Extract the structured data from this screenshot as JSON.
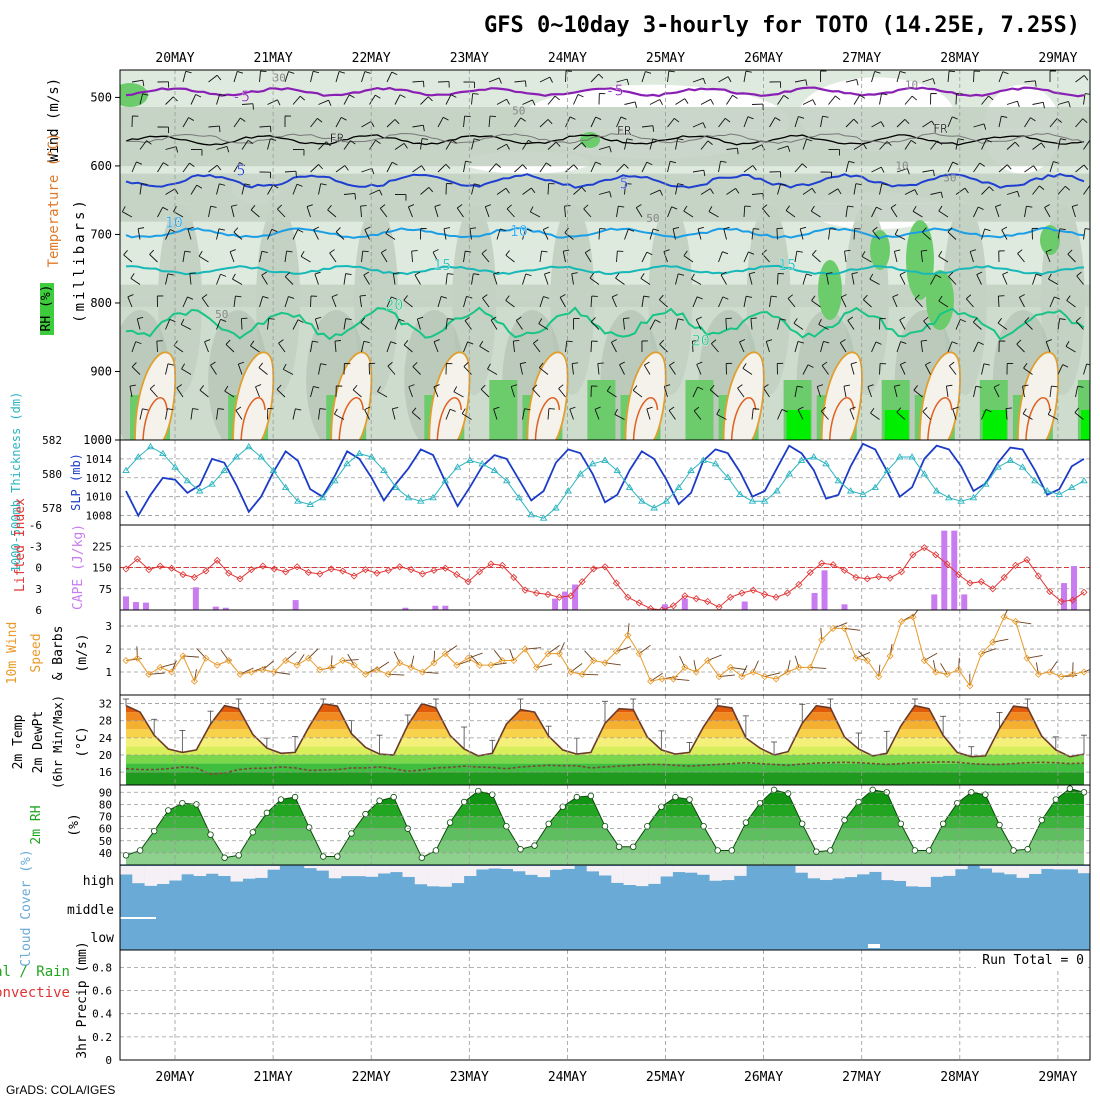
{
  "title": "GFS 0~10day 3-hourly for TOTO (14.25E, 7.25S)",
  "footer": "GrADS: COLA/IGES",
  "dates": [
    "20MAY",
    "21MAY",
    "22MAY",
    "23MAY",
    "24MAY",
    "25MAY",
    "26MAY",
    "27MAY",
    "28MAY",
    "29MAY"
  ],
  "colors": {
    "rh_light": "#dfeadf",
    "rh_mid": "#c3d2c3",
    "rh_dark": "#9aab9a",
    "rh_green": "#6ccc6c",
    "rh_bright": "#00ee00",
    "temp_purple": "#8a1fb4",
    "temp_blue": "#1e3fd0",
    "temp_cyan": "#1a9ee6",
    "temp_teal": "#16b8b8",
    "temp_green": "#18c486",
    "slp": "#1c3cc8",
    "thick": "#2ab4c0",
    "li": "#e03434",
    "cape": "#c87cf0",
    "wind": "#e89a2a",
    "cloud": "#6aaad6",
    "rh2m": "#1fa51f"
  },
  "chart_data": [
    {
      "id": "upper_air",
      "type": "heatmap",
      "ylabel": "Wind (m/s)  Temperature (°C)  RH (%)  (millibars)",
      "legend_rh": "RH (%)",
      "legend_temperature": "Temperature (°C)",
      "legend_wind": "Wind (m/s)",
      "ylabel_units": "(millibars)",
      "pressure_ticks": [
        500,
        600,
        700,
        800,
        900,
        1000
      ],
      "ylim": [
        460,
        1000
      ],
      "isotherm_labels": [
        {
          "text": "-5",
          "t": 0.12,
          "p": 506
        },
        {
          "text": "-5",
          "t": 0.51,
          "p": 497
        },
        {
          "text": "FR",
          "t": 0.22,
          "p": 566
        },
        {
          "text": "FR",
          "t": 0.52,
          "p": 555
        },
        {
          "text": "FR",
          "t": 0.85,
          "p": 552
        },
        {
          "text": "5",
          "t": 0.12,
          "p": 614
        },
        {
          "text": "5",
          "t": 0.52,
          "p": 633
        },
        {
          "text": "10",
          "t": 0.05,
          "p": 690
        },
        {
          "text": "10",
          "t": 0.41,
          "p": 702
        },
        {
          "text": "15",
          "t": 0.33,
          "p": 752
        },
        {
          "text": "15",
          "t": 0.69,
          "p": 752
        },
        {
          "text": "20",
          "t": 0.28,
          "p": 810
        },
        {
          "text": "20",
          "t": 0.6,
          "p": 862
        }
      ],
      "rh_labels": [
        {
          "text": "30",
          "t": 0.16,
          "p": 477
        },
        {
          "text": "50",
          "t": 0.41,
          "p": 525
        },
        {
          "text": "10",
          "t": 0.82,
          "p": 487
        },
        {
          "text": "10",
          "t": 0.81,
          "p": 605
        },
        {
          "text": "30",
          "t": 0.86,
          "p": 623
        },
        {
          "text": "50",
          "t": 0.55,
          "p": 682
        },
        {
          "text": "50",
          "t": 0.1,
          "p": 822
        }
      ]
    },
    {
      "id": "slp_thickness",
      "type": "line",
      "ylabel_left": "1000-500mb Thickness (dm)",
      "ylabel_right": "SLP (mb)",
      "thickness_ticks": [
        578,
        580,
        582
      ],
      "slp_ticks": [
        1008,
        1010,
        1012,
        1014
      ],
      "slp_ylim": [
        1007,
        1016
      ],
      "thick_ylim": [
        577,
        582
      ],
      "series": [
        {
          "name": "SLP (mb)",
          "values": [
            1010.6,
            1008.0,
            1010.2,
            1012.0,
            1011.8,
            1010.4,
            1011.2,
            1014.0,
            1013.6,
            1011.2,
            1008.4,
            1010.0,
            1012.6,
            1014.8,
            1013.8,
            1010.8,
            1010.0,
            1012.2,
            1014.8,
            1014.0,
            1012.0,
            1009.6,
            1011.4,
            1013.0,
            1015.0,
            1014.4,
            1011.6,
            1009.0,
            1011.0,
            1013.2,
            1014.4,
            1014.0,
            1011.8,
            1009.6,
            1010.6,
            1013.6,
            1015.0,
            1014.6,
            1012.4,
            1009.4,
            1010.2,
            1012.8,
            1014.8,
            1014.0,
            1011.8,
            1009.2,
            1010.4,
            1013.8,
            1015.0,
            1014.6,
            1012.6,
            1010.0,
            1010.6,
            1013.0,
            1015.4,
            1014.6,
            1012.8,
            1009.8,
            1010.2,
            1013.2,
            1015.6,
            1015.0,
            1012.6,
            1010.0,
            1011.0,
            1014.0,
            1015.4,
            1015.0,
            1013.2,
            1010.6,
            1011.4,
            1013.6,
            1015.2,
            1015.0,
            1012.8,
            1010.2,
            1010.8,
            1013.2,
            1014.0
          ]
        },
        {
          "name": "1000-500mb Thickness (dm)",
          "values": [
            580.2,
            581.0,
            581.6,
            581.2,
            580.4,
            579.6,
            579.0,
            579.4,
            580.2,
            581.0,
            581.6,
            581.0,
            580.2,
            579.2,
            578.4,
            578.2,
            578.6,
            579.6,
            580.6,
            581.2,
            581.0,
            580.2,
            579.2,
            578.6,
            578.4,
            578.6,
            579.6,
            580.4,
            580.8,
            580.6,
            580.2,
            579.6,
            578.6,
            577.6,
            577.4,
            578.0,
            579.0,
            580.0,
            580.6,
            580.8,
            580.2,
            579.2,
            578.4,
            578.0,
            578.4,
            579.2,
            580.2,
            580.8,
            580.6,
            579.8,
            578.8,
            578.4,
            578.4,
            579.0,
            580.0,
            580.8,
            581.0,
            580.6,
            579.6,
            579.0,
            578.8,
            579.2,
            580.2,
            581.0,
            581.0,
            580.0,
            579.0,
            578.6,
            578.4,
            578.6,
            579.4,
            580.4,
            580.8,
            580.4,
            579.6,
            579.0,
            578.8,
            579.2,
            579.6
          ]
        }
      ]
    },
    {
      "id": "li_cape",
      "type": "bar",
      "ylabel_left": "Lifted Index",
      "ylabel_right": "CAPE (J/kg)",
      "li_ticks": [
        "-6",
        "-3",
        "0",
        "3",
        "6"
      ],
      "cape_ticks": [
        75,
        150,
        225
      ],
      "li_ylim": [
        -6,
        6
      ],
      "cape_ylim": [
        0,
        300
      ],
      "series": [
        {
          "name": "Lifted Index",
          "values": [
            0.2,
            -1.2,
            0.3,
            -0.2,
            0.1,
            1.0,
            1.4,
            0.5,
            -1.0,
            0.8,
            1.6,
            0.3,
            -0.2,
            0.2,
            0.6,
            -0.1,
            0.7,
            0.9,
            0.2,
            0.5,
            1.2,
            0.3,
            0.8,
            0.4,
            -0.1,
            0.3,
            0.9,
            0.4,
            0.1,
            1.0,
            2.0,
            0.6,
            -0.5,
            -0.3,
            1.4,
            3.2,
            3.6,
            3.8,
            4.2,
            4.0,
            2.0,
            0.2,
            -0.1,
            2.2,
            4.2,
            5.0,
            5.8,
            6.0,
            5.4,
            4.0,
            4.4,
            4.8,
            5.6,
            4.2,
            3.6,
            3.2,
            3.8,
            4.2,
            3.6,
            2.4,
            0.7,
            -0.6,
            -0.4,
            0.4,
            1.4,
            1.6,
            1.3,
            1.5,
            0.6,
            -1.8,
            -2.8,
            -1.8,
            -0.5,
            1.0,
            2.2,
            2.0,
            3.0,
            1.4,
            -0.3,
            -1.1,
            1.2,
            3.4,
            4.8,
            4.6,
            3.5
          ]
        },
        {
          "name": "CAPE (J/kg)",
          "values": [
            48,
            28,
            26,
            0,
            0,
            0,
            0,
            80,
            0,
            12,
            8,
            0,
            0,
            0,
            0,
            0,
            0,
            35,
            0,
            0,
            0,
            0,
            0,
            0,
            0,
            0,
            0,
            0,
            8,
            0,
            0,
            15,
            15,
            0,
            0,
            0,
            0,
            0,
            0,
            0,
            0,
            0,
            0,
            40,
            65,
            90,
            0,
            0,
            0,
            0,
            0,
            0,
            0,
            0,
            20,
            0,
            40,
            0,
            0,
            0,
            0,
            0,
            30,
            0,
            0,
            0,
            0,
            0,
            0,
            60,
            140,
            0,
            20,
            0,
            0,
            0,
            0,
            0,
            0,
            0,
            0,
            55,
            280,
            280,
            55,
            0,
            0,
            0,
            0,
            0,
            0,
            0,
            0,
            0,
            95,
            155,
            0
          ]
        }
      ]
    },
    {
      "id": "wind10m",
      "type": "line",
      "ylabel": "10m Wind Speed & Barbs (m/s)",
      "ticks": [
        1,
        2,
        3
      ],
      "ylim": [
        0,
        3.7
      ],
      "series": [
        {
          "name": "10m Wind Speed",
          "values": [
            1.5,
            1.6,
            0.9,
            1.2,
            1.0,
            1.7,
            0.6,
            1.6,
            1.3,
            1.5,
            0.9,
            1.0,
            1.1,
            1.0,
            1.5,
            1.3,
            1.6,
            1.1,
            1.2,
            1.5,
            1.3,
            0.9,
            1.1,
            0.9,
            1.4,
            1.2,
            1.0,
            1.4,
            1.8,
            1.3,
            1.6,
            1.3,
            1.3,
            1.5,
            1.5,
            2.0,
            1.2,
            1.8,
            1.8,
            1.0,
            0.9,
            1.5,
            1.4,
            1.9,
            2.6,
            1.8,
            0.6,
            0.7,
            0.7,
            1.2,
            1.0,
            1.5,
            0.8,
            1.2,
            0.8,
            1.0,
            0.8,
            0.7,
            1.0,
            1.2,
            1.2,
            2.4,
            2.9,
            2.9,
            1.6,
            1.5,
            0.8,
            1.7,
            3.2,
            3.4,
            1.5,
            1.0,
            0.9,
            1.1,
            0.4,
            1.8,
            2.3,
            3.4,
            3.2,
            1.6,
            0.9,
            1.0,
            0.8,
            0.9,
            1.0
          ]
        }
      ]
    },
    {
      "id": "temp2m",
      "type": "area",
      "ylabel": "2m Temp  2m DewPt  (6hr Min/Max) (°C)",
      "ticks": [
        16,
        20,
        24,
        28,
        32
      ],
      "ylim": [
        13,
        34
      ],
      "series": [
        {
          "name": "2m Temp",
          "values": [
            31.5,
            30.0,
            24.6,
            21.4,
            20.6,
            21.2,
            27.2,
            31.5,
            30.8,
            24.8,
            21.6,
            20.4,
            20.6,
            26.6,
            32.0,
            31.4,
            25.0,
            21.8,
            20.2,
            20.0,
            27.0,
            32.0,
            31.0,
            24.6,
            21.4,
            19.8,
            20.4,
            27.2,
            30.6,
            30.0,
            24.4,
            21.2,
            20.2,
            20.6,
            27.4,
            30.8,
            30.6,
            24.2,
            21.2,
            20.2,
            20.6,
            26.6,
            31.5,
            31.0,
            24.0,
            21.6,
            20.0,
            20.8,
            27.4,
            31.5,
            31.0,
            24.2,
            21.4,
            19.8,
            20.4,
            26.8,
            31.5,
            30.8,
            24.6,
            20.6,
            19.6,
            19.8,
            26.2,
            31.4,
            31.0,
            24.4,
            21.2,
            19.6,
            20.2
          ]
        },
        {
          "name": "2m DewPt",
          "values": [
            16.8,
            16.6,
            16.6,
            16.8,
            17.2,
            17.0,
            15.5,
            15.8,
            16.6,
            16.9,
            16.9,
            17.2,
            17.0,
            16.4,
            16.5,
            16.6,
            17.0,
            17.0,
            17.2,
            16.8,
            16.2,
            16.5,
            17.0,
            17.1,
            17.4,
            17.2,
            17.1,
            16.8,
            17.2,
            17.4,
            17.6,
            17.5,
            17.5,
            17.0,
            17.2,
            17.4,
            17.6,
            17.8,
            17.8,
            17.6,
            17.4,
            17.6,
            17.8,
            18.0,
            18.2,
            18.0,
            17.8,
            17.6,
            17.9,
            18.1,
            18.2,
            18.3,
            18.2,
            18.0,
            17.8,
            18.0,
            18.2,
            18.3,
            18.4,
            18.3,
            18.0,
            17.8,
            17.8,
            18.0,
            18.2,
            18.3,
            18.2,
            18.0,
            18.1
          ]
        }
      ]
    },
    {
      "id": "rh2m",
      "type": "area",
      "ylabel": "2m RH (%)",
      "ticks": [
        40,
        50,
        60,
        70,
        80,
        90
      ],
      "ylim": [
        30,
        96
      ],
      "series": [
        {
          "name": "2m RH",
          "values": [
            38,
            42,
            58,
            75,
            81,
            80,
            55,
            36,
            38,
            57,
            73,
            84,
            86,
            61,
            37,
            37,
            56,
            72,
            83,
            86,
            60,
            36,
            42,
            65,
            82,
            91,
            88,
            62,
            43,
            46,
            64,
            78,
            86,
            87,
            62,
            45,
            45,
            62,
            78,
            86,
            84,
            62,
            42,
            42,
            65,
            81,
            92,
            89,
            64,
            41,
            42,
            67,
            82,
            92,
            90,
            64,
            42,
            42,
            64,
            81,
            90,
            88,
            63,
            42,
            43,
            67,
            84,
            93,
            90
          ]
        }
      ]
    },
    {
      "id": "cloud",
      "type": "heatmap",
      "ylabel": "Cloud Cover (%)",
      "levels": [
        "high",
        "middle",
        "low"
      ]
    },
    {
      "id": "precip",
      "type": "bar",
      "ylabel_left": "Total / Rain",
      "ylabel_left2": "Convective",
      "ylabel_right": "3hr Precip (mm)",
      "ticks": [
        "0",
        "0.2",
        "0.4",
        "0.6",
        "0.8"
      ],
      "ylim": [
        0,
        0.95
      ],
      "run_total": "Run Total = 0",
      "series": [
        {
          "name": "3hr Precip",
          "values": []
        }
      ]
    }
  ]
}
